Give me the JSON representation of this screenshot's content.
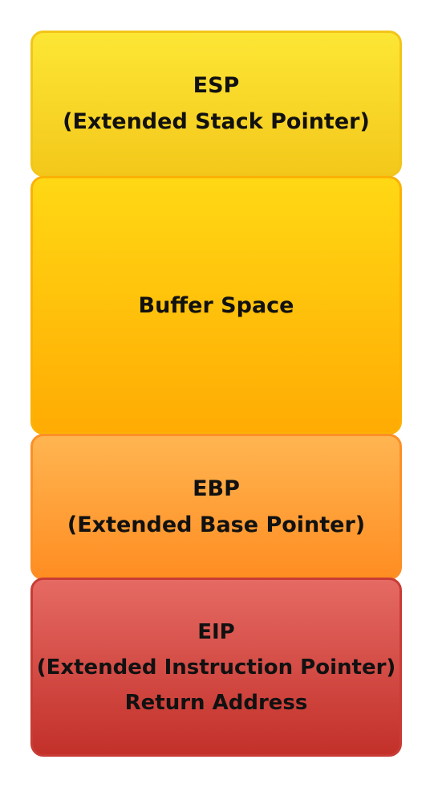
{
  "diagram": {
    "blocks": [
      {
        "lines": [
          "ESP",
          "(Extended Stack Pointer)"
        ],
        "color": "#f5d026"
      },
      {
        "lines": [
          "Buffer Space"
        ],
        "color": "#ffc20c"
      },
      {
        "lines": [
          "EBP",
          "(Extended Base Pointer)"
        ],
        "color": "#ffa03a"
      },
      {
        "lines": [
          "EIP",
          "(Extended Instruction Pointer)",
          "Return Address"
        ],
        "color": "#d44d46"
      }
    ]
  }
}
